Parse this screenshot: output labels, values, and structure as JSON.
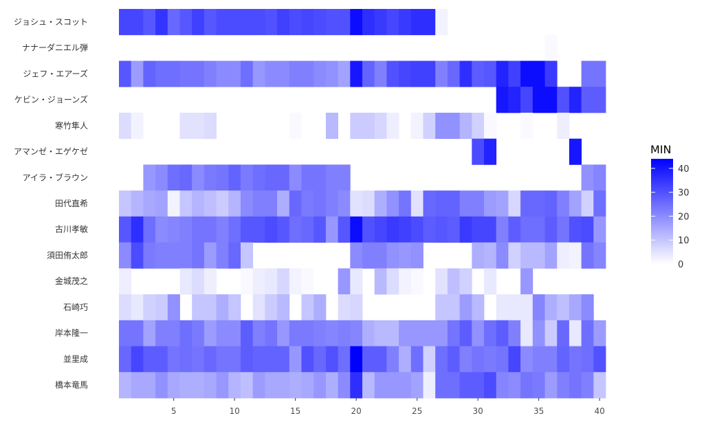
{
  "chart_data": {
    "type": "heatmap",
    "x": [
      1,
      2,
      3,
      4,
      5,
      6,
      7,
      8,
      9,
      10,
      11,
      12,
      13,
      14,
      15,
      16,
      17,
      18,
      19,
      20,
      21,
      22,
      23,
      24,
      25,
      26,
      27,
      28,
      29,
      30,
      31,
      32,
      33,
      34,
      35,
      36,
      37,
      38,
      39,
      40
    ],
    "x_ticks": [
      5,
      10,
      15,
      20,
      25,
      30,
      35,
      40
    ],
    "xlim": [
      0.5,
      40.5
    ],
    "rows": [
      "ジョシュ・スコット",
      "ナナーダニエル弾",
      "ジェフ・エアーズ",
      "ケビン・ジョーンズ",
      "寒竹隼人",
      "アマンゼ・エゲケゼ",
      "アイラ・ブラウン",
      "田代直希",
      "古川孝敏",
      "須田侑太郎",
      "金城茂之",
      "石崎巧",
      "岸本隆一",
      "並里成",
      "橋本竜馬"
    ],
    "values": [
      [
        32,
        32,
        29,
        35,
        26,
        29,
        33,
        29,
        31,
        31,
        31,
        31,
        30,
        33,
        31,
        32,
        31,
        30,
        30,
        42,
        36,
        34,
        32,
        34,
        36,
        36,
        2,
        null,
        null,
        null,
        null,
        null,
        null,
        null,
        null,
        null,
        null,
        null,
        null,
        null
      ],
      [
        null,
        null,
        null,
        null,
        null,
        null,
        null,
        null,
        null,
        null,
        null,
        null,
        null,
        null,
        null,
        null,
        null,
        null,
        null,
        null,
        null,
        null,
        null,
        null,
        null,
        null,
        null,
        null,
        null,
        null,
        null,
        null,
        null,
        null,
        null,
        1,
        null,
        null,
        null,
        null
      ],
      [
        29,
        17,
        27,
        25,
        25,
        24,
        24,
        22,
        20,
        20,
        25,
        18,
        20,
        20,
        22,
        22,
        20,
        19,
        16,
        40,
        27,
        22,
        30,
        32,
        33,
        33,
        22,
        26,
        36,
        28,
        29,
        38,
        33,
        42,
        42,
        34,
        null,
        null,
        24,
        24
      ],
      [
        null,
        null,
        null,
        null,
        null,
        null,
        null,
        null,
        null,
        null,
        null,
        null,
        null,
        null,
        null,
        null,
        null,
        null,
        null,
        null,
        null,
        null,
        null,
        null,
        null,
        null,
        null,
        null,
        null,
        null,
        null,
        40,
        38,
        32,
        42,
        42,
        30,
        38,
        28,
        28
      ],
      [
        6,
        2,
        null,
        null,
        null,
        5,
        5,
        6,
        null,
        null,
        null,
        null,
        null,
        null,
        1,
        null,
        null,
        12,
        null,
        9,
        9,
        7,
        3,
        null,
        2,
        8,
        19,
        19,
        13,
        8,
        1,
        null,
        null,
        1,
        null,
        null,
        3,
        null,
        null,
        null
      ],
      [
        null,
        null,
        null,
        null,
        null,
        null,
        null,
        null,
        null,
        null,
        null,
        null,
        null,
        null,
        null,
        null,
        null,
        null,
        null,
        null,
        null,
        null,
        null,
        null,
        null,
        null,
        null,
        null,
        null,
        31,
        38,
        null,
        null,
        null,
        null,
        null,
        null,
        40,
        null,
        null
      ],
      [
        null,
        null,
        18,
        20,
        25,
        26,
        20,
        23,
        24,
        27,
        23,
        25,
        26,
        26,
        20,
        24,
        24,
        22,
        22,
        null,
        null,
        null,
        null,
        null,
        null,
        null,
        null,
        null,
        null,
        null,
        null,
        null,
        null,
        null,
        null,
        null,
        null,
        null,
        19,
        21
      ],
      [
        10,
        13,
        15,
        16,
        2,
        10,
        13,
        11,
        9,
        13,
        20,
        22,
        22,
        14,
        26,
        23,
        24,
        22,
        20,
        5,
        6,
        14,
        19,
        24,
        5,
        26,
        27,
        27,
        22,
        22,
        17,
        16,
        7,
        26,
        26,
        27,
        22,
        16,
        8,
        25
      ],
      [
        29,
        36,
        25,
        20,
        21,
        22,
        24,
        24,
        22,
        25,
        29,
        29,
        31,
        29,
        25,
        26,
        29,
        18,
        29,
        42,
        30,
        32,
        34,
        33,
        31,
        28,
        29,
        28,
        34,
        32,
        32,
        22,
        28,
        25,
        25,
        28,
        24,
        30,
        31,
        18
      ],
      [
        20,
        31,
        23,
        22,
        22,
        22,
        24,
        17,
        22,
        26,
        10,
        null,
        null,
        null,
        null,
        null,
        null,
        null,
        null,
        20,
        22,
        22,
        19,
        18,
        19,
        null,
        null,
        null,
        null,
        14,
        13,
        20,
        8,
        12,
        12,
        16,
        3,
        2,
        24,
        21
      ],
      [
        3,
        null,
        null,
        null,
        null,
        4,
        6,
        3,
        null,
        null,
        1,
        3,
        4,
        7,
        2,
        1,
        null,
        null,
        18,
        4,
        null,
        12,
        6,
        2,
        1,
        null,
        5,
        11,
        8,
        null,
        4,
        null,
        null,
        18,
        null,
        null,
        null,
        null,
        null,
        null
      ],
      [
        6,
        4,
        8,
        9,
        19,
        null,
        10,
        10,
        14,
        10,
        null,
        5,
        9,
        12,
        null,
        10,
        14,
        null,
        6,
        7,
        null,
        null,
        null,
        null,
        null,
        null,
        10,
        10,
        17,
        12,
        null,
        4,
        4,
        4,
        21,
        14,
        11,
        15,
        20,
        null
      ],
      [
        24,
        24,
        16,
        22,
        22,
        25,
        23,
        17,
        20,
        20,
        28,
        22,
        24,
        18,
        23,
        23,
        22,
        21,
        22,
        21,
        14,
        12,
        12,
        18,
        18,
        18,
        18,
        24,
        28,
        19,
        25,
        28,
        22,
        4,
        19,
        9,
        26,
        4,
        25,
        17
      ],
      [
        26,
        32,
        28,
        28,
        24,
        25,
        24,
        26,
        24,
        24,
        28,
        27,
        27,
        27,
        18,
        30,
        26,
        30,
        25,
        44,
        28,
        28,
        22,
        14,
        25,
        8,
        25,
        28,
        22,
        24,
        23,
        24,
        32,
        20,
        22,
        22,
        27,
        24,
        25,
        30
      ],
      [
        13,
        15,
        15,
        19,
        15,
        14,
        14,
        15,
        18,
        13,
        11,
        17,
        15,
        15,
        14,
        15,
        18,
        14,
        20,
        36,
        12,
        18,
        18,
        18,
        16,
        3,
        25,
        25,
        28,
        28,
        31,
        21,
        20,
        24,
        23,
        17,
        22,
        24,
        22,
        10
      ]
    ],
    "legend_title": "MIN",
    "legend_ticks": [
      0,
      10,
      20,
      30,
      40
    ],
    "zlim": [
      0,
      44
    ],
    "color_low": "#ffffff",
    "color_high": "#0000ff",
    "grid": false,
    "legend_position": "right"
  }
}
